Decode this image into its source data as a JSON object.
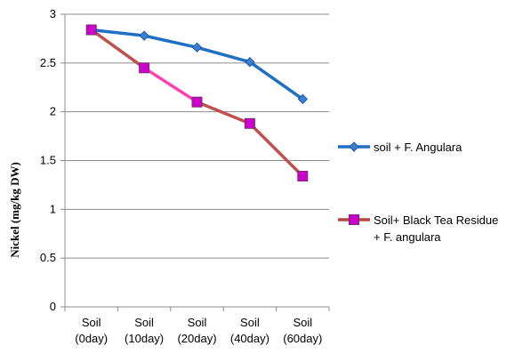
{
  "chart_data": {
    "type": "line",
    "title": "",
    "xlabel": "",
    "ylabel": "Nickel (mg/kg DW)",
    "categories": [
      [
        "Soil",
        "(0day)"
      ],
      [
        "Soil",
        "(10day)"
      ],
      [
        "Soil",
        "(20day)"
      ],
      [
        "Soil",
        "(40day)"
      ],
      [
        "Soil",
        "(60day)"
      ]
    ],
    "ylim": [
      0,
      3
    ],
    "yticks": [
      "0",
      "0.5",
      "1",
      "1.5",
      "2",
      "2.5",
      "3"
    ],
    "grid": "horizontal",
    "legend_position": "right",
    "series": [
      {
        "name": "soil + F. Angulara",
        "legend_lines": [
          "soil + F. Angulara"
        ],
        "values": [
          2.84,
          2.78,
          2.66,
          2.51,
          2.13
        ],
        "marker": "diamond",
        "color": "#1f6fc4",
        "marker_color": "#3c7fd0"
      },
      {
        "name": "Soil+ Black Tea Residue + F. angulara",
        "legend_lines": [
          "Soil+ Black Tea Residue",
          "+ F. angulara"
        ],
        "values": [
          2.84,
          2.45,
          2.1,
          1.88,
          1.34
        ],
        "marker": "square",
        "color": "#b5473f",
        "segment_colors": [
          "#c0504d",
          "#ff3fb0",
          "#c0504d",
          "#c0504d"
        ],
        "marker_color": "#cc00cc"
      }
    ]
  }
}
